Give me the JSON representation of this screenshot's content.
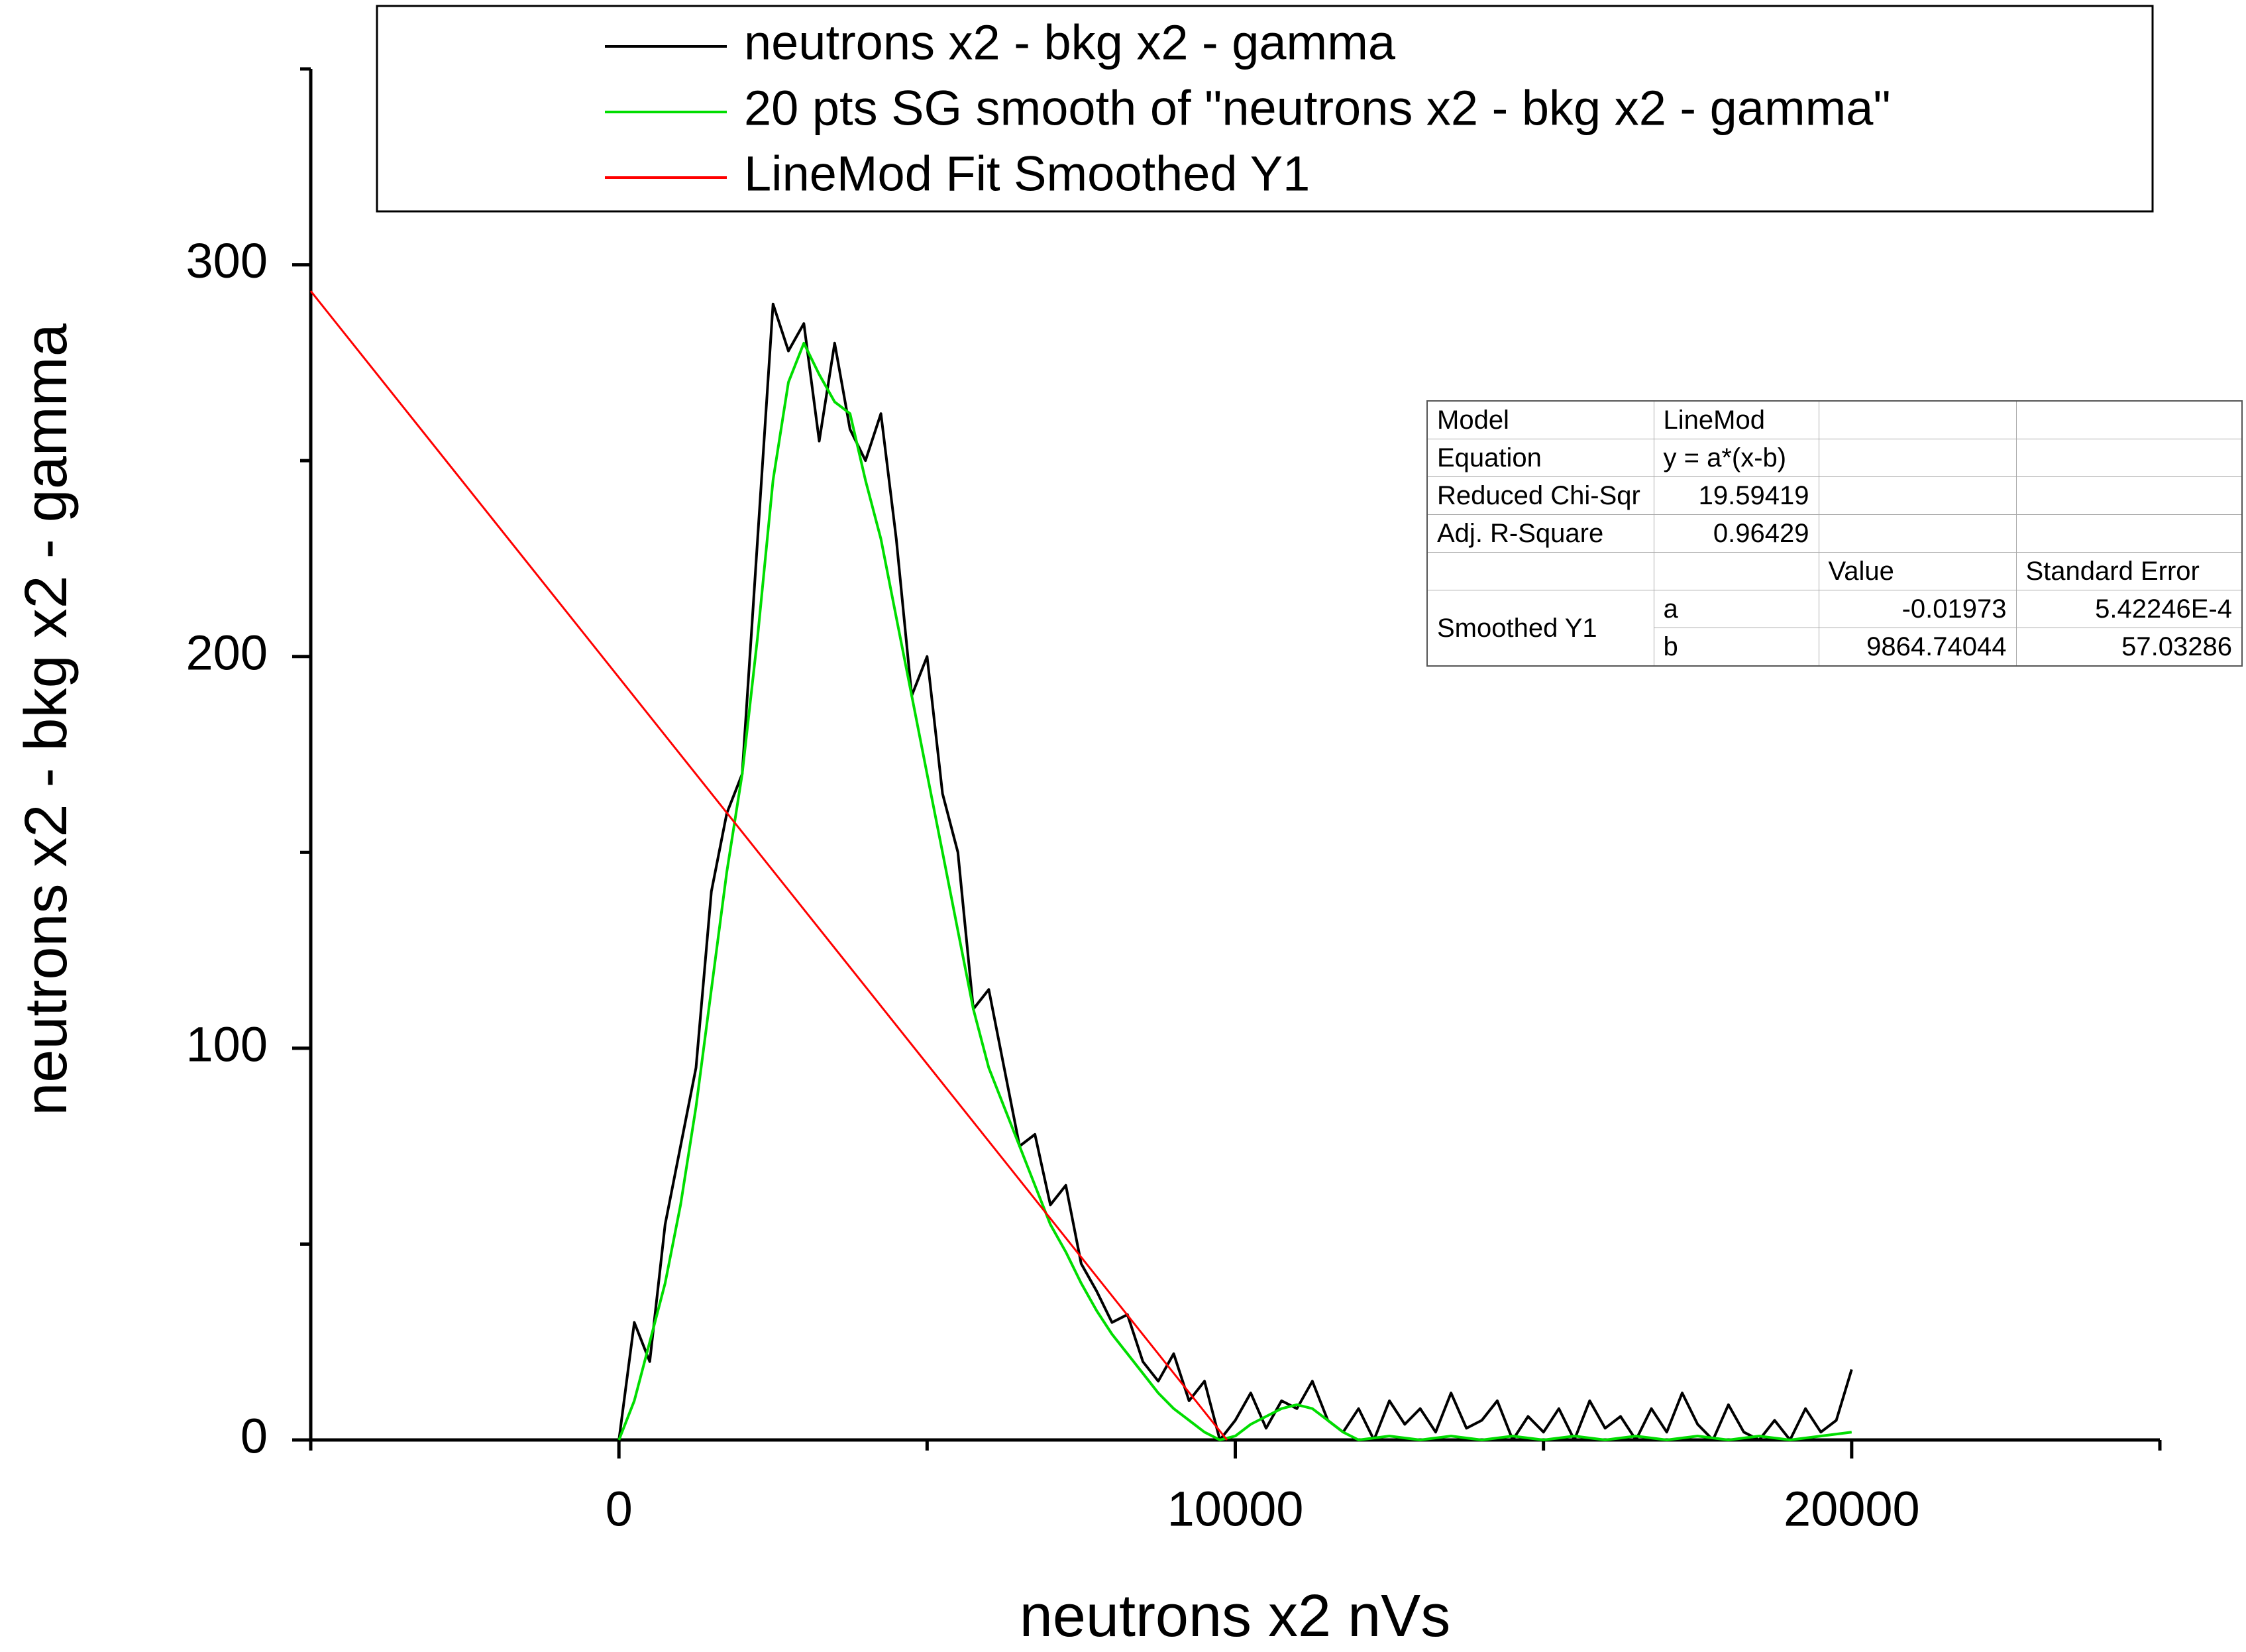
{
  "chart_data": {
    "type": "line",
    "xlabel": "neutrons x2 nVs",
    "ylabel": "neutrons x2 - bkg x2 - gamma",
    "xlim": [
      -5000,
      25000
    ],
    "xticks": [
      0,
      10000,
      20000
    ],
    "xminorticks": [
      -5000,
      5000,
      15000,
      25000
    ],
    "ylim": [
      0,
      350
    ],
    "yticks": [
      0,
      100,
      200,
      300
    ],
    "yminorticks": [
      50,
      150,
      250,
      350
    ],
    "legend": "top",
    "series": [
      {
        "name": "neutrons x2 - bkg x2 - gamma",
        "color": "#000000",
        "x": [
          0,
          250,
          500,
          750,
          1000,
          1250,
          1500,
          1750,
          2000,
          2250,
          2500,
          2750,
          3000,
          3250,
          3500,
          3750,
          4000,
          4250,
          4500,
          4750,
          5000,
          5250,
          5500,
          5750,
          6000,
          6250,
          6500,
          6750,
          7000,
          7250,
          7500,
          7750,
          8000,
          8250,
          8500,
          8750,
          9000,
          9250,
          9500,
          9750,
          10000,
          10250,
          10500,
          10750,
          11000,
          11250,
          11500,
          11750,
          12000,
          12250,
          12500,
          12750,
          13000,
          13250,
          13500,
          13750,
          14000,
          14250,
          14500,
          14750,
          15000,
          15250,
          15500,
          15750,
          16000,
          16250,
          16500,
          16750,
          17000,
          17250,
          17500,
          17750,
          18000,
          18250,
          18500,
          18750,
          19000,
          19250,
          19500,
          19750,
          20000
        ],
        "values": [
          0,
          30,
          20,
          55,
          75,
          95,
          140,
          160,
          170,
          230,
          290,
          278,
          285,
          255,
          280,
          258,
          250,
          262,
          230,
          190,
          200,
          165,
          150,
          110,
          115,
          95,
          75,
          78,
          60,
          65,
          45,
          38,
          30,
          32,
          20,
          15,
          22,
          10,
          15,
          0,
          5,
          12,
          3,
          10,
          8,
          15,
          5,
          2,
          8,
          0,
          10,
          4,
          8,
          2,
          12,
          3,
          5,
          10,
          0,
          6,
          2,
          8,
          0,
          10,
          3,
          6,
          0,
          8,
          2,
          12,
          4,
          0,
          9,
          2,
          0,
          5,
          0,
          8,
          2,
          5,
          18
        ]
      },
      {
        "name": "20 pts SG smooth of \"neutrons x2 - bkg x2 - gamma\"",
        "color": "#00dd00",
        "x": [
          0,
          250,
          500,
          750,
          1000,
          1250,
          1500,
          1750,
          2000,
          2250,
          2500,
          2750,
          3000,
          3250,
          3500,
          3750,
          4000,
          4250,
          4500,
          4750,
          5000,
          5250,
          5500,
          5750,
          6000,
          6250,
          6500,
          6750,
          7000,
          7250,
          7500,
          7750,
          8000,
          8250,
          8500,
          8750,
          9000,
          9250,
          9500,
          9750,
          10000,
          10250,
          10500,
          10750,
          11000,
          11250,
          11500,
          11750,
          12000,
          12500,
          13000,
          13500,
          14000,
          14500,
          15000,
          15500,
          16000,
          16500,
          17000,
          17500,
          18000,
          18500,
          19000,
          19500,
          20000
        ],
        "values": [
          0,
          10,
          25,
          40,
          60,
          85,
          115,
          145,
          170,
          205,
          245,
          270,
          280,
          272,
          265,
          262,
          245,
          230,
          210,
          190,
          170,
          150,
          130,
          110,
          95,
          85,
          75,
          65,
          55,
          48,
          40,
          33,
          27,
          22,
          17,
          12,
          8,
          5,
          2,
          0,
          1,
          4,
          6,
          8,
          9,
          8,
          5,
          2,
          0,
          1,
          0,
          1,
          0,
          1,
          0,
          1,
          0,
          1,
          0,
          1,
          0,
          1,
          0,
          1,
          2
        ]
      },
      {
        "name": "LineMod Fit Smoothed Y1",
        "color": "#ff0000",
        "x": [
          -5000,
          9864.74
        ],
        "values": [
          293.3,
          0
        ]
      }
    ]
  },
  "fit_table": {
    "rows": [
      [
        "Model",
        "LineMod"
      ],
      [
        "Equation",
        "y = a*(x-b)"
      ],
      [
        "Reduced Chi-Sqr",
        "19.59419"
      ],
      [
        "Adj. R-Square",
        "0.96429"
      ]
    ],
    "header": [
      "Value",
      "Standard Error"
    ],
    "group": "Smoothed Y1",
    "params": [
      [
        "a",
        "-0.01973",
        "5.42246E-4"
      ],
      [
        "b",
        "9864.74044",
        "57.03286"
      ]
    ]
  }
}
